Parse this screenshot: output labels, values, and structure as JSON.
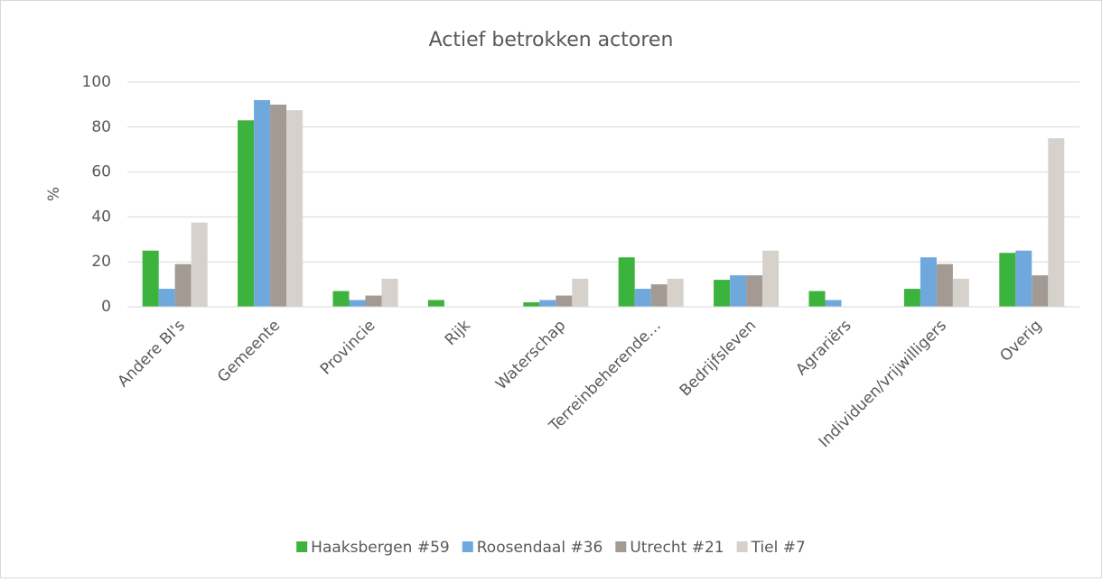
{
  "chart_data": {
    "type": "bar",
    "title": "Actief betrokken actoren",
    "y_label": "%",
    "categories": [
      "Andere BI's",
      "Gemeente",
      "Provincie",
      "Rijk",
      "Waterschap",
      "Terreinbeherende…",
      "Bedrijfsleven",
      "Agrariërs",
      "Individuen/vrijwilligers",
      "Overig"
    ],
    "series": [
      {
        "name": "Haaksbergen #59",
        "color": "#3cb33c",
        "values": [
          25,
          83,
          7,
          3,
          2,
          22,
          12,
          7,
          8,
          24
        ]
      },
      {
        "name": "Roosendaal #36",
        "color": "#6fa8dc",
        "values": [
          8,
          92,
          3,
          0,
          3,
          8,
          14,
          3,
          22,
          25
        ]
      },
      {
        "name": "Utrecht #21",
        "color": "#a39a94",
        "values": [
          19,
          90,
          5,
          0,
          5,
          10,
          14,
          0,
          19,
          14
        ]
      },
      {
        "name": "Tiel #7",
        "color": "#d6d2cb",
        "values": [
          37.5,
          87.5,
          12.5,
          0,
          12.5,
          12.5,
          25,
          0,
          12.5,
          75
        ]
      }
    ],
    "ylim": [
      0,
      100
    ],
    "yticks": [
      0,
      20,
      40,
      60,
      80,
      100
    ],
    "grid": true,
    "legend": "bottom"
  }
}
